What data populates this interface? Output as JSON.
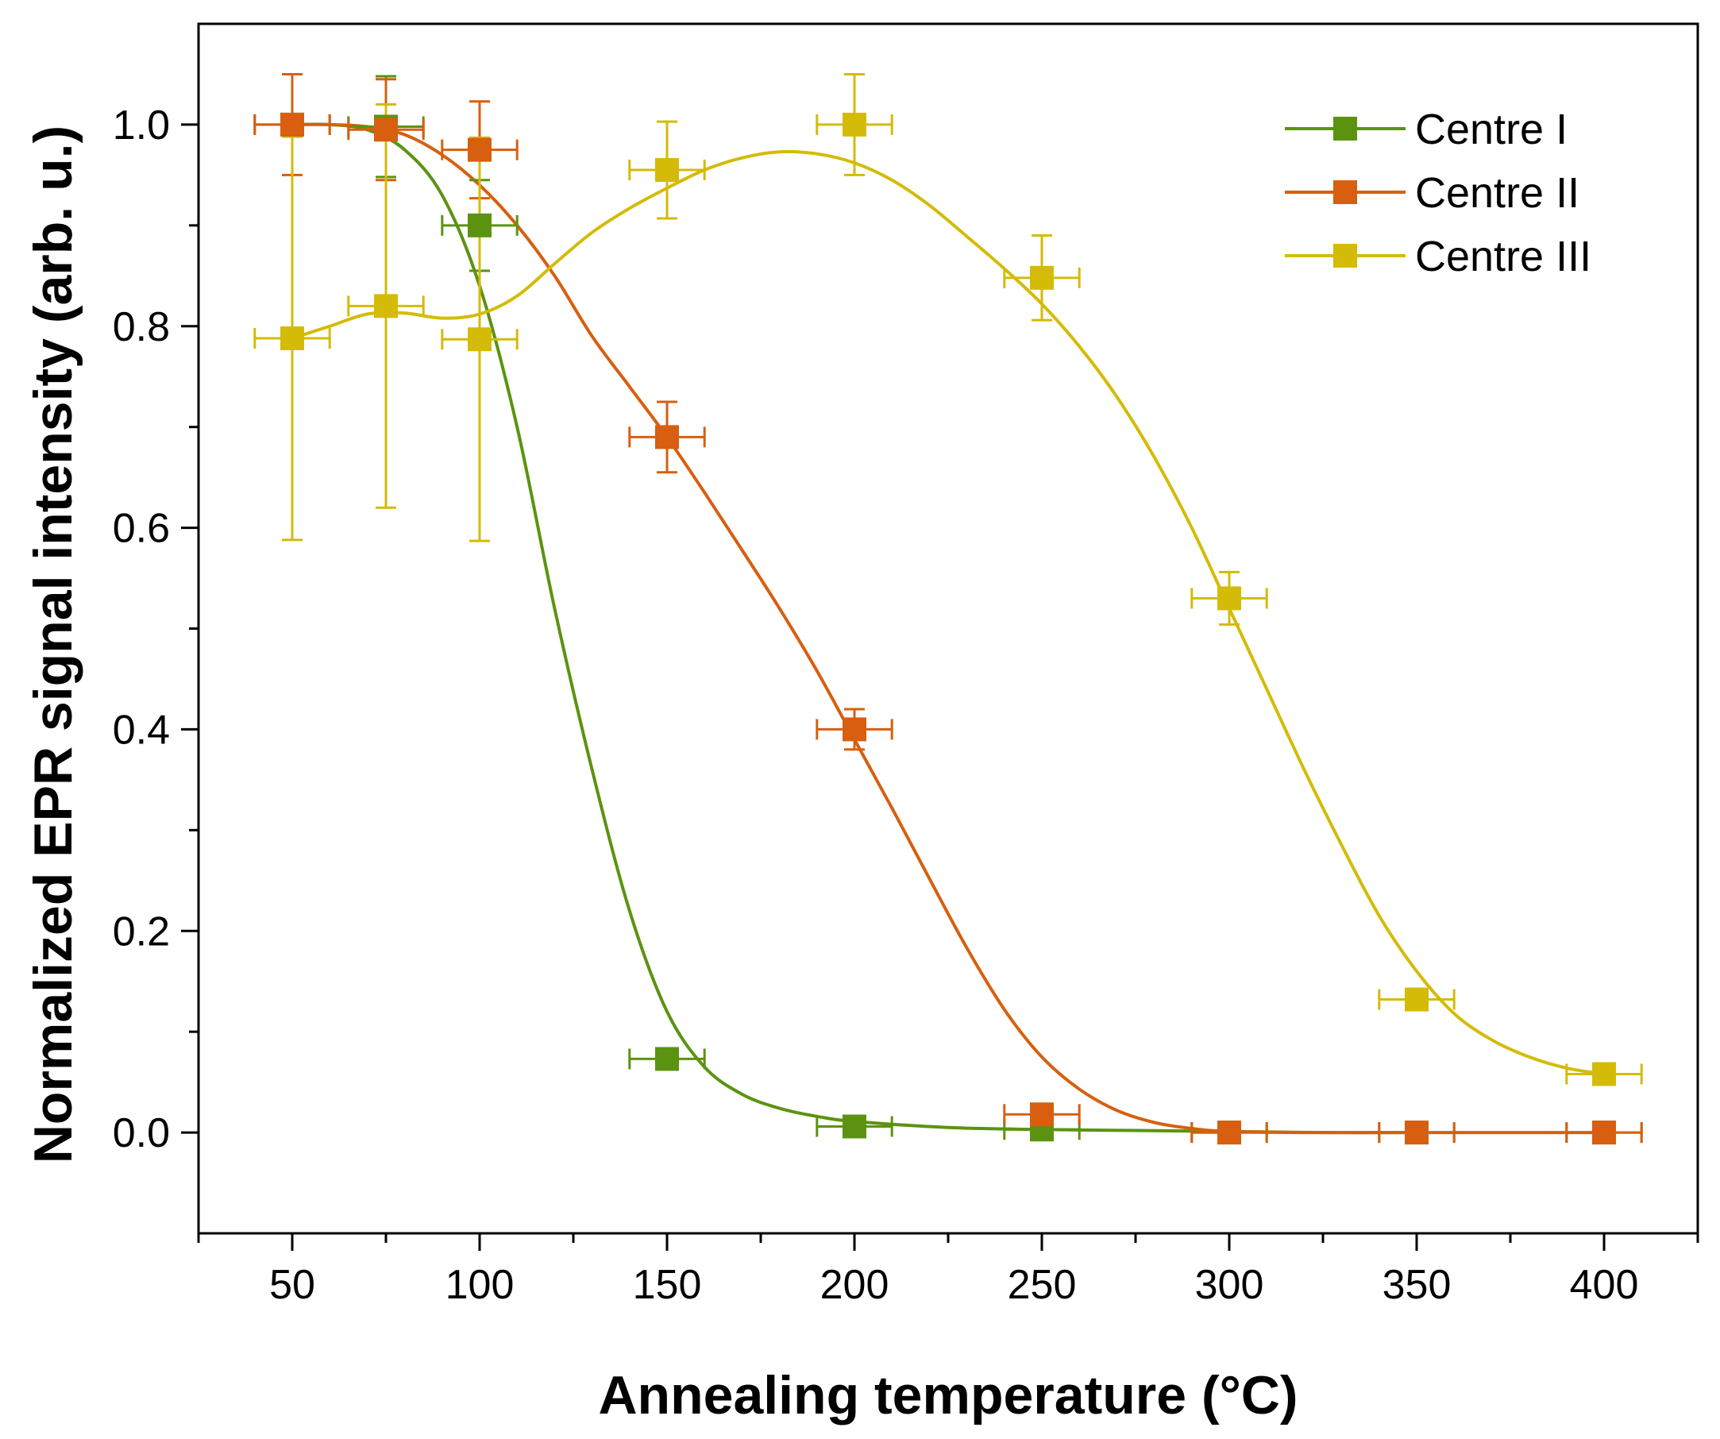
{
  "chart_data": {
    "type": "line",
    "title": "",
    "xlabel": "Annealing temperature (°C)",
    "ylabel": "Normalized EPR signal intensity (arb. u.)",
    "xlim": [
      25,
      425
    ],
    "ylim": [
      -0.1,
      1.1
    ],
    "xticks": [
      50,
      100,
      150,
      200,
      250,
      300,
      350,
      400
    ],
    "xtick_labels": [
      "50",
      "100",
      "150",
      "200",
      "250",
      "300",
      "350",
      "400"
    ],
    "xminor": [
      75,
      125,
      175,
      225,
      275,
      325,
      375
    ],
    "yticks": [
      0.0,
      0.2,
      0.4,
      0.6,
      0.8,
      1.0
    ],
    "ytick_labels": [
      "0.0",
      "0.2",
      "0.4",
      "0.6",
      "0.8",
      "1.0"
    ],
    "yminor": [
      0.1,
      0.3,
      0.5,
      0.7,
      0.9
    ],
    "grid": false,
    "legend_position": "top-right",
    "x_error": 10,
    "series": [
      {
        "name": "Centre I",
        "color": "#5b9310",
        "points": [
          {
            "x": 50,
            "y": 1.0,
            "yerr": 0
          },
          {
            "x": 75,
            "y": 0.998,
            "yerr": 0.05
          },
          {
            "x": 100,
            "y": 0.9,
            "yerr": 0.045
          },
          {
            "x": 150,
            "y": 0.073,
            "yerr": 0.004
          },
          {
            "x": 200,
            "y": 0.006,
            "yerr": 0
          },
          {
            "x": 250,
            "y": 0.003,
            "yerr": 0
          },
          {
            "x": 300,
            "y": 0.0,
            "yerr": 0
          },
          {
            "x": 350,
            "y": 0.0,
            "yerr": 0
          },
          {
            "x": 400,
            "y": 0.0,
            "yerr": 0
          }
        ],
        "curve": [
          [
            50,
            1.0
          ],
          [
            60,
            1.0
          ],
          [
            70,
            0.995
          ],
          [
            80,
            0.975
          ],
          [
            90,
            0.93
          ],
          [
            100,
            0.84
          ],
          [
            110,
            0.7
          ],
          [
            120,
            0.52
          ],
          [
            130,
            0.36
          ],
          [
            140,
            0.22
          ],
          [
            150,
            0.12
          ],
          [
            160,
            0.065
          ],
          [
            170,
            0.038
          ],
          [
            180,
            0.024
          ],
          [
            190,
            0.016
          ],
          [
            200,
            0.011
          ],
          [
            225,
            0.005
          ],
          [
            250,
            0.003
          ],
          [
            275,
            0.002
          ],
          [
            300,
            0.001
          ],
          [
            325,
            0.0
          ],
          [
            350,
            0.0
          ]
        ]
      },
      {
        "name": "Centre II",
        "color": "#d75f0f",
        "points": [
          {
            "x": 50,
            "y": 1.0,
            "yerr": 0.05
          },
          {
            "x": 75,
            "y": 0.995,
            "yerr": 0.05
          },
          {
            "x": 100,
            "y": 0.975,
            "yerr": 0.048
          },
          {
            "x": 150,
            "y": 0.69,
            "yerr": 0.035
          },
          {
            "x": 200,
            "y": 0.4,
            "yerr": 0.02
          },
          {
            "x": 250,
            "y": 0.018,
            "yerr": 0
          },
          {
            "x": 300,
            "y": 0.0,
            "yerr": 0
          },
          {
            "x": 350,
            "y": 0.0,
            "yerr": 0
          },
          {
            "x": 400,
            "y": 0.0,
            "yerr": 0
          }
        ],
        "curve": [
          [
            50,
            1.0
          ],
          [
            60,
            1.0
          ],
          [
            70,
            0.998
          ],
          [
            80,
            0.99
          ],
          [
            90,
            0.97
          ],
          [
            100,
            0.94
          ],
          [
            110,
            0.9
          ],
          [
            120,
            0.85
          ],
          [
            130,
            0.79
          ],
          [
            140,
            0.74
          ],
          [
            150,
            0.69
          ],
          [
            160,
            0.635
          ],
          [
            170,
            0.578
          ],
          [
            180,
            0.52
          ],
          [
            190,
            0.458
          ],
          [
            200,
            0.39
          ],
          [
            210,
            0.322
          ],
          [
            220,
            0.252
          ],
          [
            230,
            0.183
          ],
          [
            240,
            0.122
          ],
          [
            250,
            0.075
          ],
          [
            260,
            0.043
          ],
          [
            270,
            0.022
          ],
          [
            280,
            0.01
          ],
          [
            290,
            0.004
          ],
          [
            300,
            0.001
          ],
          [
            320,
            0.0
          ],
          [
            350,
            0.0
          ],
          [
            400,
            0.0
          ]
        ]
      },
      {
        "name": "Centre III",
        "color": "#d4bb07",
        "points": [
          {
            "x": 50,
            "y": 0.788,
            "yerr": 0.2
          },
          {
            "x": 75,
            "y": 0.82,
            "yerr": 0.2
          },
          {
            "x": 100,
            "y": 0.787,
            "yerr": 0.2
          },
          {
            "x": 150,
            "y": 0.955,
            "yerr": 0.048
          },
          {
            "x": 200,
            "y": 1.0,
            "yerr": 0.05
          },
          {
            "x": 250,
            "y": 0.848,
            "yerr": 0.042
          },
          {
            "x": 300,
            "y": 0.53,
            "yerr": 0.026
          },
          {
            "x": 350,
            "y": 0.132,
            "yerr": 0
          },
          {
            "x": 400,
            "y": 0.058,
            "yerr": 0
          }
        ],
        "curve": [
          [
            50,
            0.788
          ],
          [
            60,
            0.8
          ],
          [
            70,
            0.812
          ],
          [
            80,
            0.813
          ],
          [
            90,
            0.808
          ],
          [
            100,
            0.812
          ],
          [
            110,
            0.83
          ],
          [
            120,
            0.862
          ],
          [
            130,
            0.893
          ],
          [
            140,
            0.917
          ],
          [
            150,
            0.937
          ],
          [
            160,
            0.955
          ],
          [
            170,
            0.967
          ],
          [
            180,
            0.973
          ],
          [
            190,
            0.971
          ],
          [
            200,
            0.962
          ],
          [
            210,
            0.945
          ],
          [
            220,
            0.92
          ],
          [
            230,
            0.889
          ],
          [
            240,
            0.857
          ],
          [
            250,
            0.822
          ],
          [
            260,
            0.78
          ],
          [
            270,
            0.73
          ],
          [
            280,
            0.67
          ],
          [
            290,
            0.6
          ],
          [
            300,
            0.52
          ],
          [
            310,
            0.44
          ],
          [
            320,
            0.36
          ],
          [
            330,
            0.285
          ],
          [
            340,
            0.215
          ],
          [
            350,
            0.16
          ],
          [
            360,
            0.118
          ],
          [
            370,
            0.092
          ],
          [
            380,
            0.075
          ],
          [
            390,
            0.064
          ],
          [
            400,
            0.058
          ]
        ]
      }
    ]
  }
}
